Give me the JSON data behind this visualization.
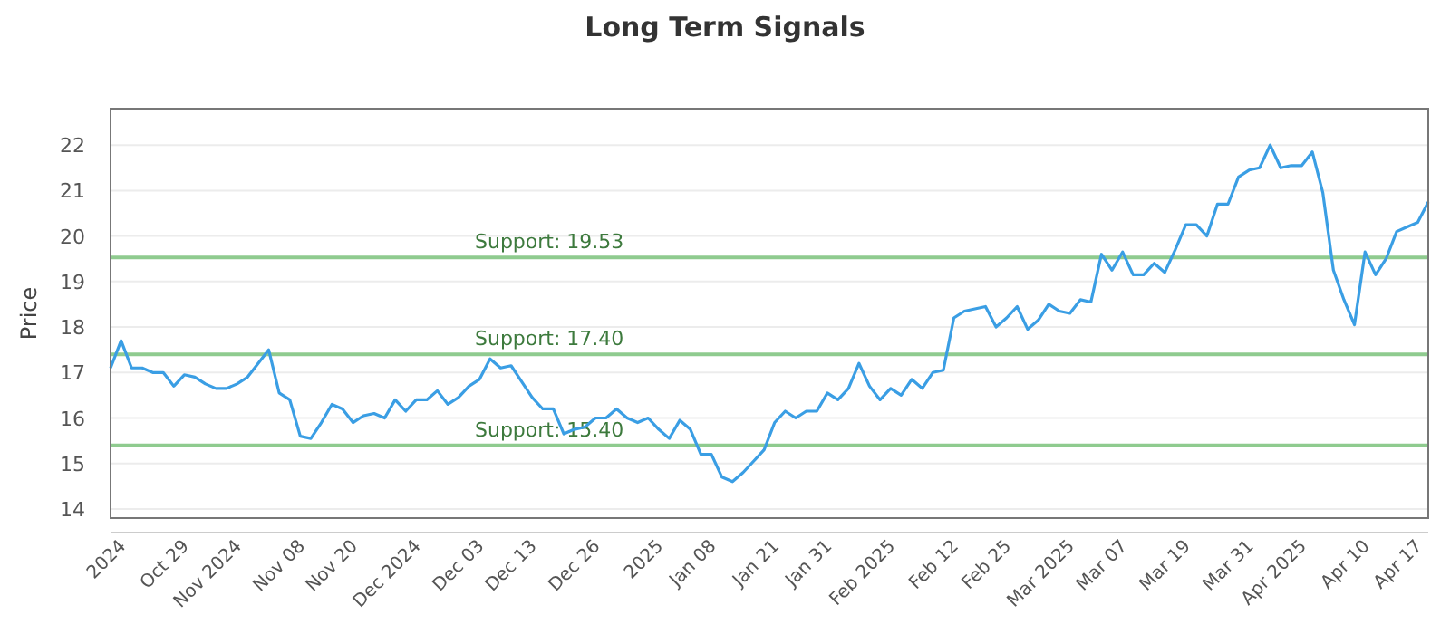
{
  "chart_data": {
    "type": "line",
    "title": "Long Term Signals",
    "ylabel": "Price",
    "categories": [
      null,
      "2024",
      null,
      null,
      null,
      null,
      null,
      "Oct 29",
      null,
      null,
      null,
      null,
      "Nov 2024",
      null,
      null,
      null,
      null,
      null,
      "Nov 08",
      null,
      null,
      null,
      null,
      "Nov 20",
      null,
      null,
      null,
      null,
      null,
      "Dec 2024",
      null,
      null,
      null,
      null,
      null,
      "Dec 03",
      null,
      null,
      null,
      null,
      "Dec 13",
      null,
      null,
      null,
      null,
      null,
      "Dec 26",
      null,
      null,
      null,
      null,
      null,
      "2025",
      null,
      null,
      null,
      null,
      "Jan 08",
      null,
      null,
      null,
      null,
      null,
      "Jan 21",
      null,
      null,
      null,
      null,
      "Jan 31",
      null,
      null,
      null,
      null,
      null,
      "Feb 2025",
      null,
      null,
      null,
      null,
      null,
      "Feb 12",
      null,
      null,
      null,
      null,
      "Feb 25",
      null,
      null,
      null,
      null,
      null,
      "Mar 2025",
      null,
      null,
      null,
      null,
      "Mar 07",
      null,
      null,
      null,
      null,
      null,
      "Mar 19",
      null,
      null,
      null,
      null,
      null,
      "Mar 31",
      null,
      null,
      null,
      null,
      "Apr 2025",
      null,
      null,
      null,
      null,
      null,
      "Apr 10",
      null,
      null,
      null,
      null,
      "Apr 17",
      null
    ],
    "series": [
      {
        "color": "#3a9ee4",
        "values": [
          17.1,
          17.7,
          17.1,
          17.1,
          17.0,
          17.0,
          16.7,
          16.95,
          16.9,
          16.75,
          16.65,
          16.65,
          16.75,
          16.9,
          17.2,
          17.5,
          16.55,
          16.4,
          15.6,
          15.55,
          15.9,
          16.3,
          16.2,
          15.9,
          16.05,
          16.1,
          16.0,
          16.4,
          16.15,
          16.4,
          16.4,
          16.6,
          16.3,
          16.45,
          16.7,
          16.85,
          17.3,
          17.1,
          17.15,
          16.8,
          16.45,
          16.2,
          16.2,
          15.65,
          15.75,
          15.8,
          16.0,
          16.0,
          16.2,
          16.0,
          15.9,
          16.0,
          15.75,
          15.55,
          15.95,
          15.75,
          15.2,
          15.2,
          14.7,
          14.6,
          14.8,
          15.05,
          15.3,
          15.9,
          16.15,
          16.0,
          16.15,
          16.15,
          16.55,
          16.4,
          16.65,
          17.2,
          16.7,
          16.4,
          16.65,
          16.5,
          16.85,
          16.65,
          17.0,
          17.05,
          18.2,
          18.35,
          18.4,
          18.45,
          18.0,
          18.2,
          18.45,
          17.95,
          18.15,
          18.5,
          18.35,
          18.3,
          18.6,
          18.55,
          19.6,
          19.25,
          19.65,
          19.15,
          19.15,
          19.4,
          19.2,
          19.7,
          20.25,
          20.25,
          20.0,
          20.7,
          20.7,
          21.3,
          21.45,
          21.5,
          22.0,
          21.5,
          21.55,
          21.55,
          21.85,
          20.95,
          19.25,
          18.6,
          18.05,
          19.65,
          19.15,
          19.5,
          20.1,
          20.2,
          20.3,
          20.75
        ]
      }
    ],
    "ylim": [
      13.8,
      22.8
    ],
    "yticks": [
      14,
      15,
      16,
      17,
      18,
      19,
      20,
      21,
      22
    ],
    "grid": "y",
    "marker": "none",
    "line_style": "solid",
    "ref_lines": [
      {
        "axis": "y",
        "value": 19.53,
        "label": "Support: 19.53",
        "color": "#8fcb8f"
      },
      {
        "axis": "y",
        "value": 17.4,
        "label": "Support: 17.40",
        "color": "#8fcb8f"
      },
      {
        "axis": "y",
        "value": 15.4,
        "label": "Support: 15.40",
        "color": "#8fcb8f"
      }
    ]
  }
}
